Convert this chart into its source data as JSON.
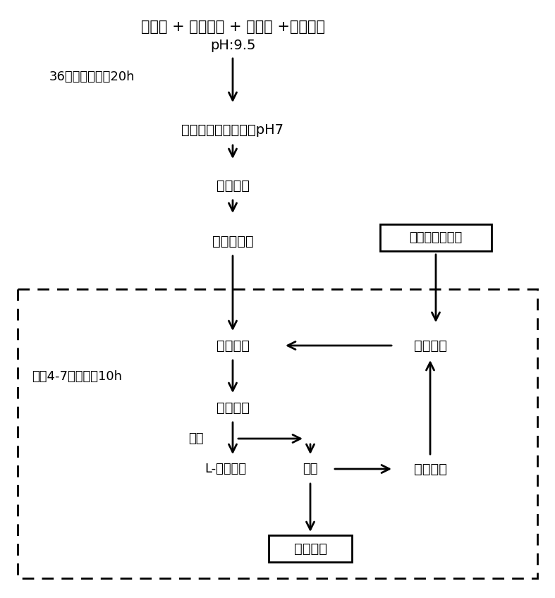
{
  "title_line1": "精氨酸 + 精氨酸酶 + 硫酸锰 +去离子水",
  "title_line2": "pH:9.5",
  "step1_label": "36摄氏度，保温20h",
  "step2": "反应混合液用盐酸调pH7",
  "step3": "减压蒸馏",
  "step4": "反应浓缩液",
  "box_right": "防爆车间内操作",
  "step5": "白色沉淀",
  "step5_right": "无水乙醇",
  "step6_label": "温度4-7度，时间10h",
  "step6": "白色结晶",
  "step7_label": "抽滤",
  "step7a": "L-鸟氨酸盐",
  "step7b": "滤液",
  "step7c": "回收乙醇",
  "step8_box": "危险废液",
  "bg_color": "#ffffff",
  "text_color": "#000000",
  "arrow_color": "#000000"
}
